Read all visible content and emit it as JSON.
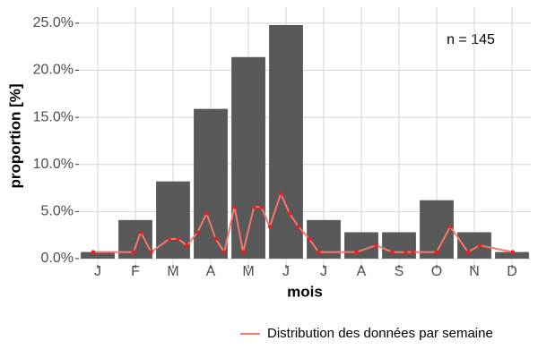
{
  "chart_data": {
    "type": "bar",
    "xlabel": "mois",
    "ylabel": "proportion [%]",
    "annotation": "n = 145",
    "categories": [
      "J",
      "F",
      "M",
      "A",
      "M",
      "J",
      "J",
      "A",
      "S",
      "O",
      "N",
      "D"
    ],
    "values": [
      0.7,
      4.1,
      8.2,
      15.9,
      21.4,
      24.8,
      4.1,
      2.8,
      2.8,
      6.2,
      2.8,
      0.7
    ],
    "color": "#595959",
    "xlim": [
      0.5,
      12.5
    ],
    "ylim": [
      -0.67,
      26.7
    ],
    "yticks": [
      {
        "value": 0,
        "label": "0.0%"
      },
      {
        "value": 5,
        "label": "5.0%"
      },
      {
        "value": 10,
        "label": "10.0%"
      },
      {
        "value": 15,
        "label": "15.0%"
      },
      {
        "value": 20,
        "label": "20.0%"
      },
      {
        "value": 25,
        "label": "25.0%"
      }
    ],
    "grid": true,
    "legend": "bottom-right",
    "line": {
      "name": "Distribution des données par semaine",
      "color": "#f8766d",
      "point_color": "#e8201e",
      "x": [
        0.88,
        1.95,
        2.14,
        2.42,
        2.9,
        3.13,
        3.37,
        3.65,
        3.89,
        4.13,
        4.36,
        4.63,
        4.86,
        5.15,
        5.34,
        5.57,
        5.86,
        6.09,
        6.33,
        6.62,
        6.86,
        7.87,
        8.39,
        8.82,
        9.18,
        9.37,
        10.0,
        10.36,
        10.83,
        11.14,
        12.02
      ],
      "values": [
        0.7,
        0.7,
        2.8,
        0.7,
        2.1,
        2.1,
        1.4,
        2.8,
        4.8,
        2.1,
        0.7,
        5.5,
        0.7,
        5.5,
        5.5,
        3.4,
        6.9,
        4.8,
        3.4,
        2.1,
        0.7,
        0.7,
        1.4,
        0.7,
        0.7,
        0.7,
        0.7,
        3.4,
        0.7,
        1.4,
        0.7
      ]
    }
  }
}
